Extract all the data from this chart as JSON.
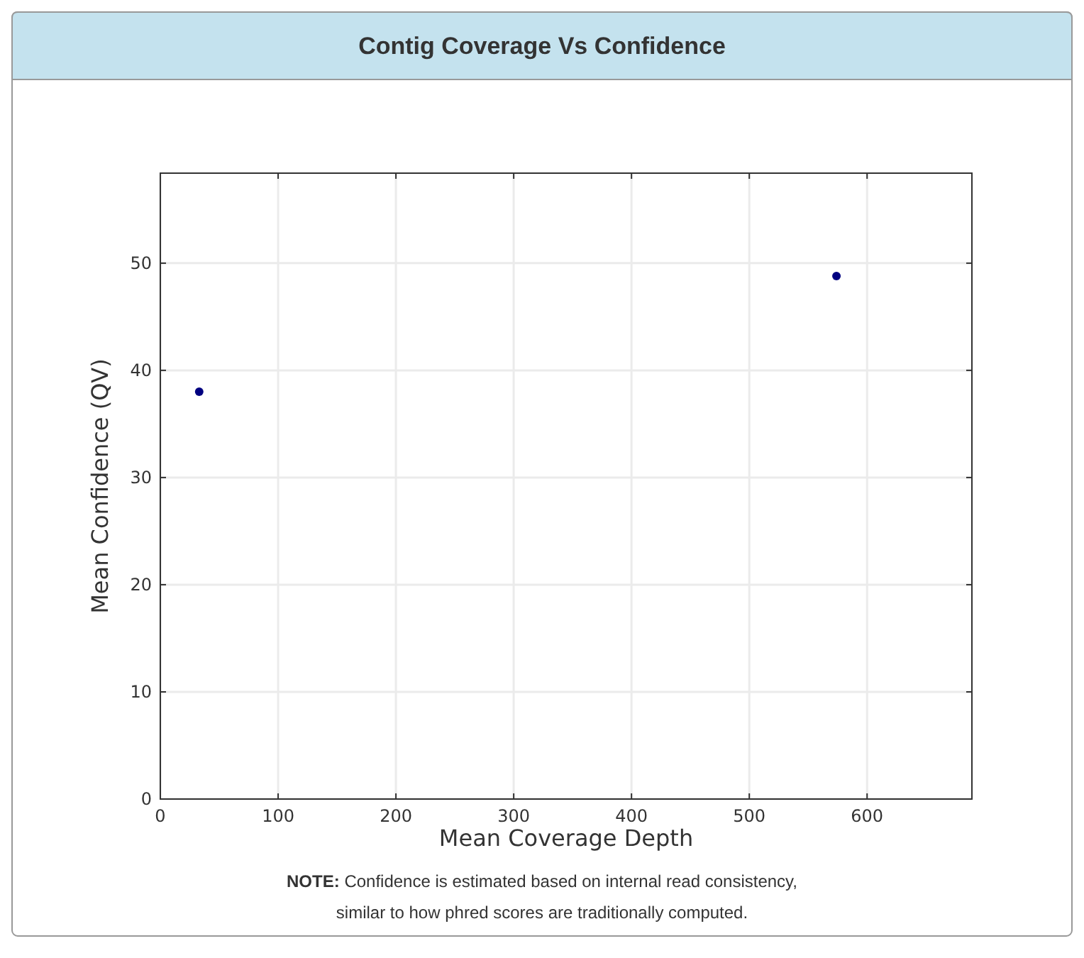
{
  "chart_data": {
    "type": "scatter",
    "title": "Contig Coverage Vs Confidence",
    "xlabel": "Mean Coverage Depth",
    "ylabel": "Mean Confidence (QV)",
    "x": [
      33,
      574
    ],
    "values": [
      38.0,
      48.8
    ],
    "color": "#000080",
    "marker": "circle",
    "xlim": [
      0,
      689
    ],
    "xticks": [
      0,
      100,
      200,
      300,
      400,
      500,
      600
    ],
    "ylim": [
      0,
      58.4
    ],
    "yticks": [
      0,
      10,
      20,
      30,
      40,
      50
    ],
    "grid": true,
    "annotations": [
      "NOTE: Confidence is estimated based on internal read consistency, similar to how phred scores are traditionally computed."
    ]
  }
}
